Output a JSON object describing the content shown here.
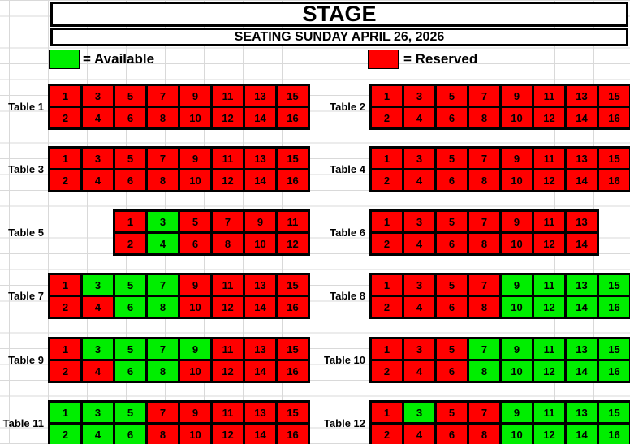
{
  "title": "STAGE",
  "subtitle": "SEATING SUNDAY APRIL 26, 2026",
  "legend": {
    "available_label": "= Available",
    "reserved_label": "= Reserved",
    "available_color": "#00EE00",
    "reserved_color": "#FF0000"
  },
  "seat_status_colors": {
    "available": "#00EE00",
    "reserved": "#FF0000"
  },
  "tables": [
    {
      "label": "Table 1",
      "cols": 8,
      "indent_cols": 0,
      "seats": [
        {
          "num": 1,
          "status": "reserved"
        },
        {
          "num": 2,
          "status": "reserved"
        },
        {
          "num": 3,
          "status": "reserved"
        },
        {
          "num": 4,
          "status": "reserved"
        },
        {
          "num": 5,
          "status": "reserved"
        },
        {
          "num": 6,
          "status": "reserved"
        },
        {
          "num": 7,
          "status": "reserved"
        },
        {
          "num": 8,
          "status": "reserved"
        },
        {
          "num": 9,
          "status": "reserved"
        },
        {
          "num": 10,
          "status": "reserved"
        },
        {
          "num": 11,
          "status": "reserved"
        },
        {
          "num": 12,
          "status": "reserved"
        },
        {
          "num": 13,
          "status": "reserved"
        },
        {
          "num": 14,
          "status": "reserved"
        },
        {
          "num": 15,
          "status": "reserved"
        },
        {
          "num": 16,
          "status": "reserved"
        }
      ]
    },
    {
      "label": "Table 2",
      "cols": 8,
      "indent_cols": 0,
      "seats": [
        {
          "num": 1,
          "status": "reserved"
        },
        {
          "num": 2,
          "status": "reserved"
        },
        {
          "num": 3,
          "status": "reserved"
        },
        {
          "num": 4,
          "status": "reserved"
        },
        {
          "num": 5,
          "status": "reserved"
        },
        {
          "num": 6,
          "status": "reserved"
        },
        {
          "num": 7,
          "status": "reserved"
        },
        {
          "num": 8,
          "status": "reserved"
        },
        {
          "num": 9,
          "status": "reserved"
        },
        {
          "num": 10,
          "status": "reserved"
        },
        {
          "num": 11,
          "status": "reserved"
        },
        {
          "num": 12,
          "status": "reserved"
        },
        {
          "num": 13,
          "status": "reserved"
        },
        {
          "num": 14,
          "status": "reserved"
        },
        {
          "num": 15,
          "status": "reserved"
        },
        {
          "num": 16,
          "status": "reserved"
        }
      ]
    },
    {
      "label": "Table 3",
      "cols": 8,
      "indent_cols": 0,
      "seats": [
        {
          "num": 1,
          "status": "reserved"
        },
        {
          "num": 2,
          "status": "reserved"
        },
        {
          "num": 3,
          "status": "reserved"
        },
        {
          "num": 4,
          "status": "reserved"
        },
        {
          "num": 5,
          "status": "reserved"
        },
        {
          "num": 6,
          "status": "reserved"
        },
        {
          "num": 7,
          "status": "reserved"
        },
        {
          "num": 8,
          "status": "reserved"
        },
        {
          "num": 9,
          "status": "reserved"
        },
        {
          "num": 10,
          "status": "reserved"
        },
        {
          "num": 11,
          "status": "reserved"
        },
        {
          "num": 12,
          "status": "reserved"
        },
        {
          "num": 13,
          "status": "reserved"
        },
        {
          "num": 14,
          "status": "reserved"
        },
        {
          "num": 15,
          "status": "reserved"
        },
        {
          "num": 16,
          "status": "reserved"
        }
      ]
    },
    {
      "label": "Table 4",
      "cols": 8,
      "indent_cols": 0,
      "seats": [
        {
          "num": 1,
          "status": "reserved"
        },
        {
          "num": 2,
          "status": "reserved"
        },
        {
          "num": 3,
          "status": "reserved"
        },
        {
          "num": 4,
          "status": "reserved"
        },
        {
          "num": 5,
          "status": "reserved"
        },
        {
          "num": 6,
          "status": "reserved"
        },
        {
          "num": 7,
          "status": "reserved"
        },
        {
          "num": 8,
          "status": "reserved"
        },
        {
          "num": 9,
          "status": "reserved"
        },
        {
          "num": 10,
          "status": "reserved"
        },
        {
          "num": 11,
          "status": "reserved"
        },
        {
          "num": 12,
          "status": "reserved"
        },
        {
          "num": 13,
          "status": "reserved"
        },
        {
          "num": 14,
          "status": "reserved"
        },
        {
          "num": 15,
          "status": "reserved"
        },
        {
          "num": 16,
          "status": "reserved"
        }
      ]
    },
    {
      "label": "Table 5",
      "cols": 6,
      "indent_cols": 2,
      "seats": [
        {
          "num": 1,
          "status": "reserved"
        },
        {
          "num": 2,
          "status": "reserved"
        },
        {
          "num": 3,
          "status": "available"
        },
        {
          "num": 4,
          "status": "available"
        },
        {
          "num": 5,
          "status": "reserved"
        },
        {
          "num": 6,
          "status": "reserved"
        },
        {
          "num": 7,
          "status": "reserved"
        },
        {
          "num": 8,
          "status": "reserved"
        },
        {
          "num": 9,
          "status": "reserved"
        },
        {
          "num": 10,
          "status": "reserved"
        },
        {
          "num": 11,
          "status": "reserved"
        },
        {
          "num": 12,
          "status": "reserved"
        }
      ]
    },
    {
      "label": "Table 6",
      "cols": 7,
      "indent_cols": 0,
      "seats": [
        {
          "num": 1,
          "status": "reserved"
        },
        {
          "num": 2,
          "status": "reserved"
        },
        {
          "num": 3,
          "status": "reserved"
        },
        {
          "num": 4,
          "status": "reserved"
        },
        {
          "num": 5,
          "status": "reserved"
        },
        {
          "num": 6,
          "status": "reserved"
        },
        {
          "num": 7,
          "status": "reserved"
        },
        {
          "num": 8,
          "status": "reserved"
        },
        {
          "num": 9,
          "status": "reserved"
        },
        {
          "num": 10,
          "status": "reserved"
        },
        {
          "num": 11,
          "status": "reserved"
        },
        {
          "num": 12,
          "status": "reserved"
        },
        {
          "num": 13,
          "status": "reserved"
        },
        {
          "num": 14,
          "status": "reserved"
        }
      ]
    },
    {
      "label": "Table 7",
      "cols": 8,
      "indent_cols": 0,
      "seats": [
        {
          "num": 1,
          "status": "reserved"
        },
        {
          "num": 2,
          "status": "reserved"
        },
        {
          "num": 3,
          "status": "available"
        },
        {
          "num": 4,
          "status": "reserved"
        },
        {
          "num": 5,
          "status": "available"
        },
        {
          "num": 6,
          "status": "available"
        },
        {
          "num": 7,
          "status": "available"
        },
        {
          "num": 8,
          "status": "available"
        },
        {
          "num": 9,
          "status": "reserved"
        },
        {
          "num": 10,
          "status": "reserved"
        },
        {
          "num": 11,
          "status": "reserved"
        },
        {
          "num": 12,
          "status": "reserved"
        },
        {
          "num": 13,
          "status": "reserved"
        },
        {
          "num": 14,
          "status": "reserved"
        },
        {
          "num": 15,
          "status": "reserved"
        },
        {
          "num": 16,
          "status": "reserved"
        }
      ]
    },
    {
      "label": "Table 8",
      "cols": 8,
      "indent_cols": 0,
      "seats": [
        {
          "num": 1,
          "status": "reserved"
        },
        {
          "num": 2,
          "status": "reserved"
        },
        {
          "num": 3,
          "status": "reserved"
        },
        {
          "num": 4,
          "status": "reserved"
        },
        {
          "num": 5,
          "status": "reserved"
        },
        {
          "num": 6,
          "status": "reserved"
        },
        {
          "num": 7,
          "status": "reserved"
        },
        {
          "num": 8,
          "status": "reserved"
        },
        {
          "num": 9,
          "status": "available"
        },
        {
          "num": 10,
          "status": "available"
        },
        {
          "num": 11,
          "status": "available"
        },
        {
          "num": 12,
          "status": "available"
        },
        {
          "num": 13,
          "status": "available"
        },
        {
          "num": 14,
          "status": "available"
        },
        {
          "num": 15,
          "status": "available"
        },
        {
          "num": 16,
          "status": "available"
        }
      ]
    },
    {
      "label": "Table 9",
      "cols": 8,
      "indent_cols": 0,
      "seats": [
        {
          "num": 1,
          "status": "reserved"
        },
        {
          "num": 2,
          "status": "reserved"
        },
        {
          "num": 3,
          "status": "available"
        },
        {
          "num": 4,
          "status": "reserved"
        },
        {
          "num": 5,
          "status": "available"
        },
        {
          "num": 6,
          "status": "available"
        },
        {
          "num": 7,
          "status": "available"
        },
        {
          "num": 8,
          "status": "available"
        },
        {
          "num": 9,
          "status": "available"
        },
        {
          "num": 10,
          "status": "reserved"
        },
        {
          "num": 11,
          "status": "reserved"
        },
        {
          "num": 12,
          "status": "reserved"
        },
        {
          "num": 13,
          "status": "reserved"
        },
        {
          "num": 14,
          "status": "reserved"
        },
        {
          "num": 15,
          "status": "reserved"
        },
        {
          "num": 16,
          "status": "reserved"
        }
      ]
    },
    {
      "label": "Table 10",
      "cols": 8,
      "indent_cols": 0,
      "seats": [
        {
          "num": 1,
          "status": "reserved"
        },
        {
          "num": 2,
          "status": "reserved"
        },
        {
          "num": 3,
          "status": "reserved"
        },
        {
          "num": 4,
          "status": "reserved"
        },
        {
          "num": 5,
          "status": "reserved"
        },
        {
          "num": 6,
          "status": "reserved"
        },
        {
          "num": 7,
          "status": "available"
        },
        {
          "num": 8,
          "status": "available"
        },
        {
          "num": 9,
          "status": "available"
        },
        {
          "num": 10,
          "status": "available"
        },
        {
          "num": 11,
          "status": "available"
        },
        {
          "num": 12,
          "status": "available"
        },
        {
          "num": 13,
          "status": "available"
        },
        {
          "num": 14,
          "status": "available"
        },
        {
          "num": 15,
          "status": "available"
        },
        {
          "num": 16,
          "status": "available"
        }
      ]
    },
    {
      "label": "Table 11",
      "cols": 8,
      "indent_cols": 0,
      "seats": [
        {
          "num": 1,
          "status": "available"
        },
        {
          "num": 2,
          "status": "available"
        },
        {
          "num": 3,
          "status": "available"
        },
        {
          "num": 4,
          "status": "available"
        },
        {
          "num": 5,
          "status": "available"
        },
        {
          "num": 6,
          "status": "available"
        },
        {
          "num": 7,
          "status": "reserved"
        },
        {
          "num": 8,
          "status": "reserved"
        },
        {
          "num": 9,
          "status": "reserved"
        },
        {
          "num": 10,
          "status": "reserved"
        },
        {
          "num": 11,
          "status": "reserved"
        },
        {
          "num": 12,
          "status": "reserved"
        },
        {
          "num": 13,
          "status": "reserved"
        },
        {
          "num": 14,
          "status": "reserved"
        },
        {
          "num": 15,
          "status": "reserved"
        },
        {
          "num": 16,
          "status": "reserved"
        }
      ]
    },
    {
      "label": "Table 12",
      "cols": 8,
      "indent_cols": 0,
      "seats": [
        {
          "num": 1,
          "status": "reserved"
        },
        {
          "num": 2,
          "status": "reserved"
        },
        {
          "num": 3,
          "status": "available"
        },
        {
          "num": 4,
          "status": "reserved"
        },
        {
          "num": 5,
          "status": "reserved"
        },
        {
          "num": 6,
          "status": "reserved"
        },
        {
          "num": 7,
          "status": "reserved"
        },
        {
          "num": 8,
          "status": "reserved"
        },
        {
          "num": 9,
          "status": "available"
        },
        {
          "num": 10,
          "status": "available"
        },
        {
          "num": 11,
          "status": "available"
        },
        {
          "num": 12,
          "status": "available"
        },
        {
          "num": 13,
          "status": "available"
        },
        {
          "num": 14,
          "status": "available"
        },
        {
          "num": 15,
          "status": "available"
        },
        {
          "num": 16,
          "status": "available"
        }
      ]
    }
  ]
}
